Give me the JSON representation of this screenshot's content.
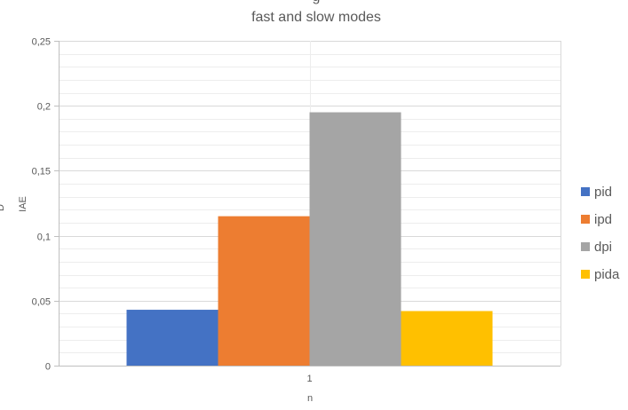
{
  "chart_data": {
    "type": "bar",
    "title_fragment": "g",
    "title": "fast and slow modes",
    "xlabel": "n",
    "ylabel": "IAE",
    "ylabel_fragment": "D",
    "categories": [
      "1"
    ],
    "series": [
      {
        "name": "pid",
        "values": [
          0.043
        ],
        "color": "#4472C4"
      },
      {
        "name": "ipd",
        "values": [
          0.115
        ],
        "color": "#ED7D31"
      },
      {
        "name": "dpi",
        "values": [
          0.195
        ],
        "color": "#A5A5A5"
      },
      {
        "name": "pida",
        "values": [
          0.042
        ],
        "color": "#FFC000"
      }
    ],
    "ylim": [
      0,
      0.25
    ],
    "yticks": [
      0,
      0.05,
      0.1,
      0.15,
      0.2,
      0.25
    ],
    "ytick_labels": [
      "0",
      "0,05",
      "0,1",
      "0,15",
      "0,2",
      "0,25"
    ],
    "grid": true,
    "minor_grid": true,
    "legend_position": "right"
  }
}
